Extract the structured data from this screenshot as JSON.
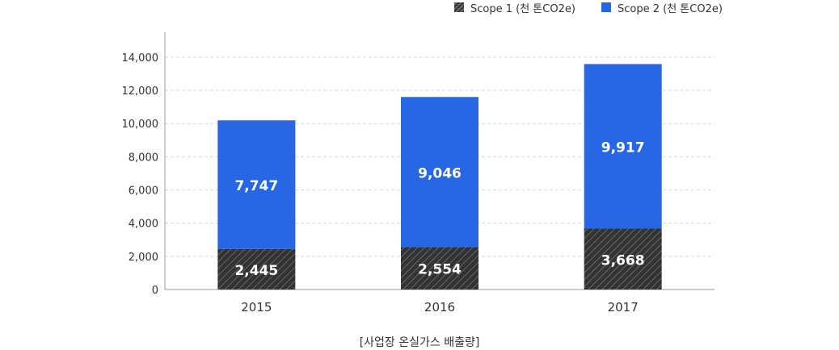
{
  "legend": {
    "scope1_label": "Scope 1 (천 톤CO2e)",
    "scope2_label": "Scope 2 (천 톤CO2e)"
  },
  "caption": "[사업장 온실가스 배출량]",
  "colors": {
    "scope1": "#333333",
    "scope2": "#2867e3",
    "grid": "#d9d9d9",
    "axis": "#999999",
    "text": "#333333"
  },
  "chart_data": {
    "type": "bar",
    "stacked": true,
    "categories": [
      "2015",
      "2016",
      "2017"
    ],
    "series": [
      {
        "name": "Scope 1 (천 톤CO2e)",
        "values": [
          2445,
          2554,
          3668
        ],
        "value_labels": [
          "2,445",
          "2,554",
          "3,668"
        ],
        "pattern": "diagonal-hatch"
      },
      {
        "name": "Scope 2 (천 톤CO2e)",
        "values": [
          7747,
          9046,
          9917
        ],
        "value_labels": [
          "7,747",
          "9,046",
          "9,917"
        ]
      }
    ],
    "ylim": [
      0,
      15500
    ],
    "yticks": [
      0,
      2000,
      4000,
      6000,
      8000,
      10000,
      12000,
      14000
    ],
    "ytick_labels": [
      "0",
      "2,000",
      "4,000",
      "6,000",
      "8,000",
      "10,000",
      "12,000",
      "14,000"
    ],
    "xlabel": "",
    "ylabel": "",
    "grid": true,
    "legend_position": "top-right"
  }
}
